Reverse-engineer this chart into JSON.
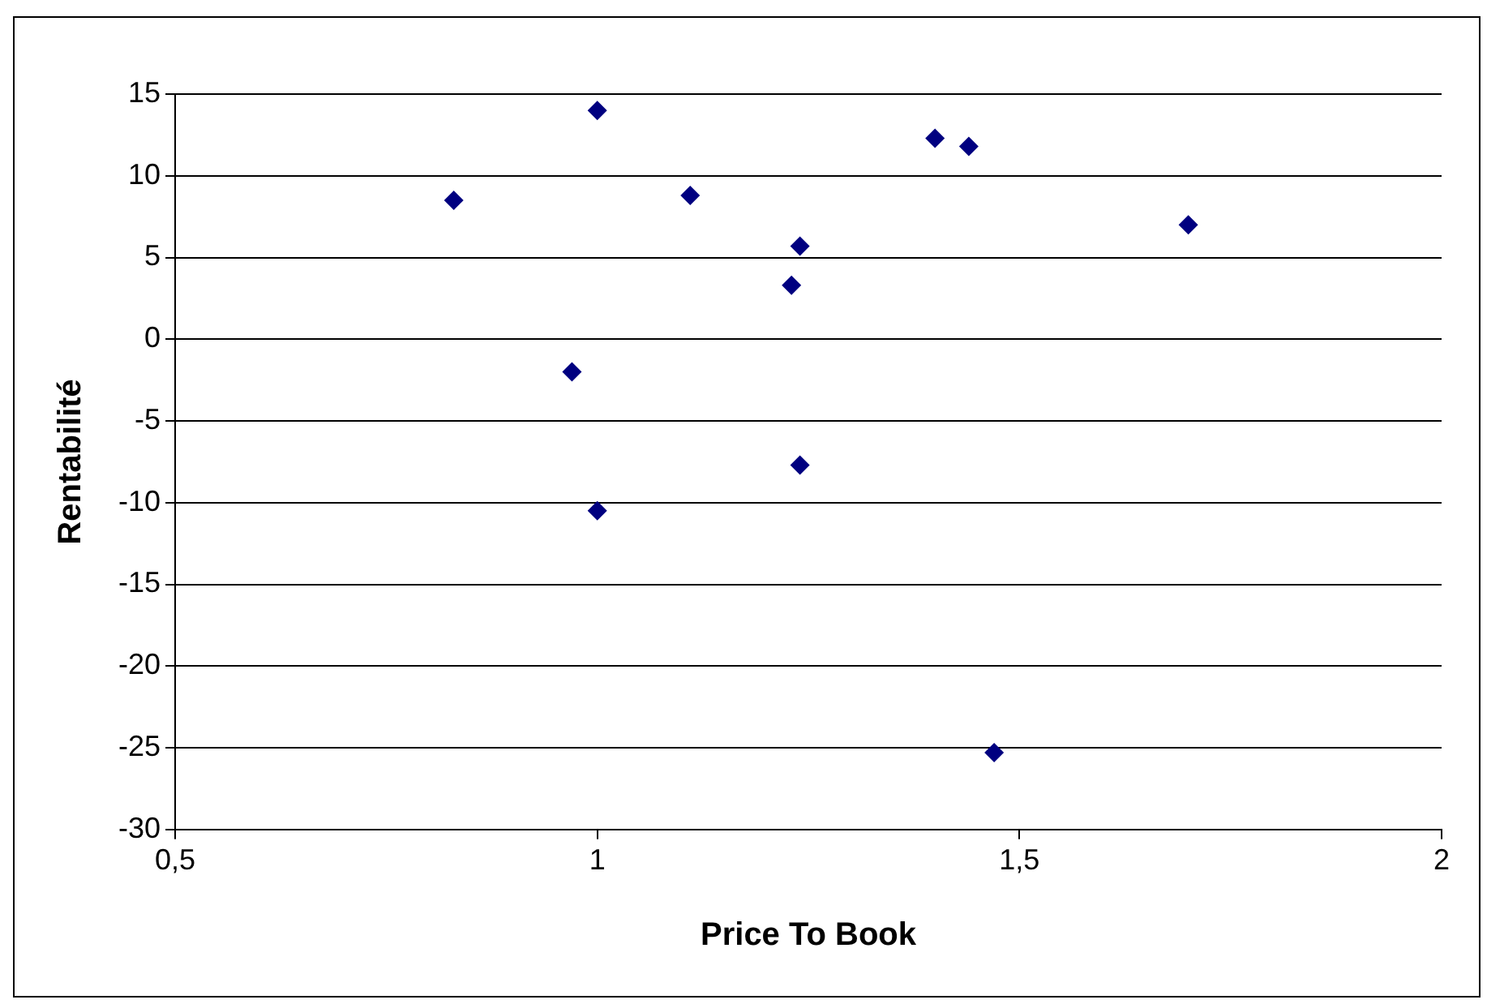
{
  "chart_data": {
    "type": "scatter",
    "xlabel": "Price To Book",
    "ylabel": "Rentabilité",
    "series": [
      {
        "color": "#000080",
        "x": [
          0.83,
          1.0,
          1.11,
          0.97,
          1.0,
          1.24,
          1.23,
          1.24,
          1.4,
          1.44,
          1.47,
          1.7
        ],
        "values": [
          8.5,
          14,
          8.8,
          -2,
          -10.5,
          5.7,
          3.3,
          -7.7,
          12.3,
          11.8,
          -25.3,
          7
        ]
      }
    ],
    "xlim": [
      0.5,
      2
    ],
    "xticks": [
      {
        "value": 0.5,
        "label": "0,5"
      },
      1,
      {
        "value": 1.5,
        "label": "1,5"
      },
      2
    ],
    "ylim": [
      -30,
      15
    ],
    "yticks": [
      -30,
      -25,
      -20,
      -15,
      -10,
      -5,
      0,
      5,
      10,
      15
    ],
    "grid": "y",
    "marker": "diamond",
    "legend": false
  }
}
